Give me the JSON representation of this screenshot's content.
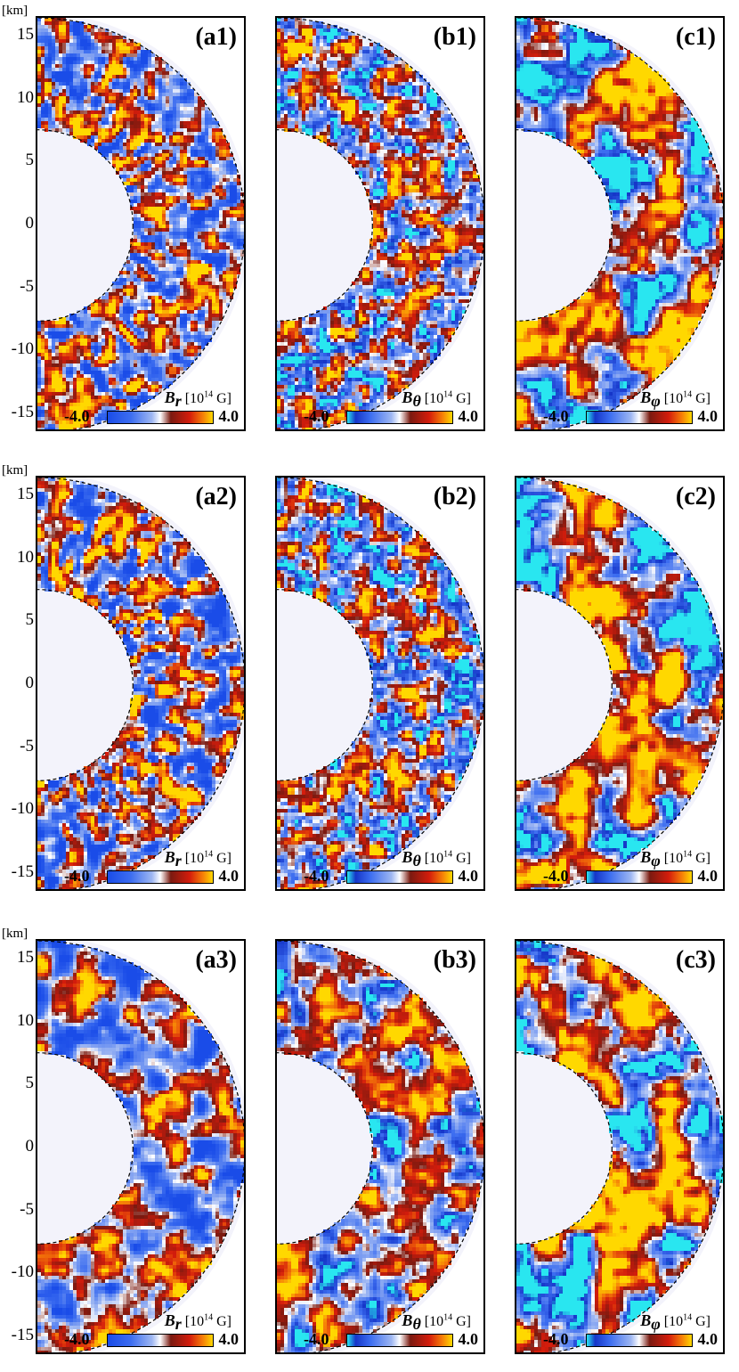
{
  "axis": {
    "unit": "[km]",
    "ticks": [
      "15",
      "10",
      "5",
      "0",
      "-5",
      "-10",
      "-15"
    ]
  },
  "rows": [
    {
      "panels": [
        {
          "label": "(a1)",
          "quantity": "B",
          "subscript": "r",
          "unit_open": "[10",
          "unit_exp": "14",
          "unit_close": " G]",
          "min": "-4.0",
          "max": "4.0",
          "palette": "br",
          "seed": 11,
          "style": "radial"
        },
        {
          "label": "(b1)",
          "quantity": "B",
          "subscript": "θ",
          "unit_open": "[10",
          "unit_exp": "14",
          "unit_close": " G]",
          "min": "-4.0",
          "max": "4.0",
          "palette": "bt",
          "seed": 23,
          "style": "blotch"
        },
        {
          "label": "(c1)",
          "quantity": "B",
          "subscript": "φ",
          "unit_open": "[10",
          "unit_exp": "14",
          "unit_close": " G]",
          "min": "-4.0",
          "max": "4.0",
          "palette": "bp",
          "seed": 37,
          "style": "large"
        }
      ]
    },
    {
      "panels": [
        {
          "label": "(a2)",
          "quantity": "B",
          "subscript": "r",
          "unit_open": "[10",
          "unit_exp": "14",
          "unit_close": " G]",
          "min": "-4.0",
          "max": "4.0",
          "palette": "br",
          "seed": 51,
          "style": "radial"
        },
        {
          "label": "(b2)",
          "quantity": "B",
          "subscript": "θ",
          "unit_open": "[10",
          "unit_exp": "14",
          "unit_close": " G]",
          "min": "-4.0",
          "max": "4.0",
          "palette": "bt",
          "seed": 67,
          "style": "blotch"
        },
        {
          "label": "(c2)",
          "quantity": "B",
          "subscript": "φ",
          "unit_open": "[10",
          "unit_exp": "14",
          "unit_close": " G]",
          "min": "-4.0",
          "max": "4.0",
          "palette": "bp",
          "seed": 79,
          "style": "large"
        }
      ]
    },
    {
      "panels": [
        {
          "label": "(a3)",
          "quantity": "B",
          "subscript": "r",
          "unit_open": "[10",
          "unit_exp": "14",
          "unit_close": " G]",
          "min": "-4.0",
          "max": "4.0",
          "palette": "br",
          "seed": 97,
          "style": "soft"
        },
        {
          "label": "(b3)",
          "quantity": "B",
          "subscript": "θ",
          "unit_open": "[10",
          "unit_exp": "14",
          "unit_close": " G]",
          "min": "-4.0",
          "max": "4.0",
          "palette": "bt",
          "seed": 113,
          "style": "soft"
        },
        {
          "label": "(c3)",
          "quantity": "B",
          "subscript": "φ",
          "unit_open": "[10",
          "unit_exp": "14",
          "unit_close": " G]",
          "min": "-4.0",
          "max": "4.0",
          "palette": "bp",
          "seed": 131,
          "style": "large"
        }
      ]
    }
  ],
  "colors": {
    "deep_blue": "#1535c8",
    "blue": "#3c6df0",
    "light_blue": "#9db6f2",
    "white": "#ffffff",
    "dark_red": "#7a1a10",
    "red": "#d41c0c",
    "orange": "#f57a08",
    "yellow": "#ffd800",
    "cyan": "#29e6f0"
  },
  "chart_data": {
    "type": "heatmap",
    "x_range_km": [
      0,
      16.5
    ],
    "y_range_km": [
      -16.5,
      16.5
    ],
    "inner_radius_km": 7.6,
    "outer_radius_km": 16.5,
    "colorbar_range": [
      -4.0,
      4.0
    ]
  }
}
